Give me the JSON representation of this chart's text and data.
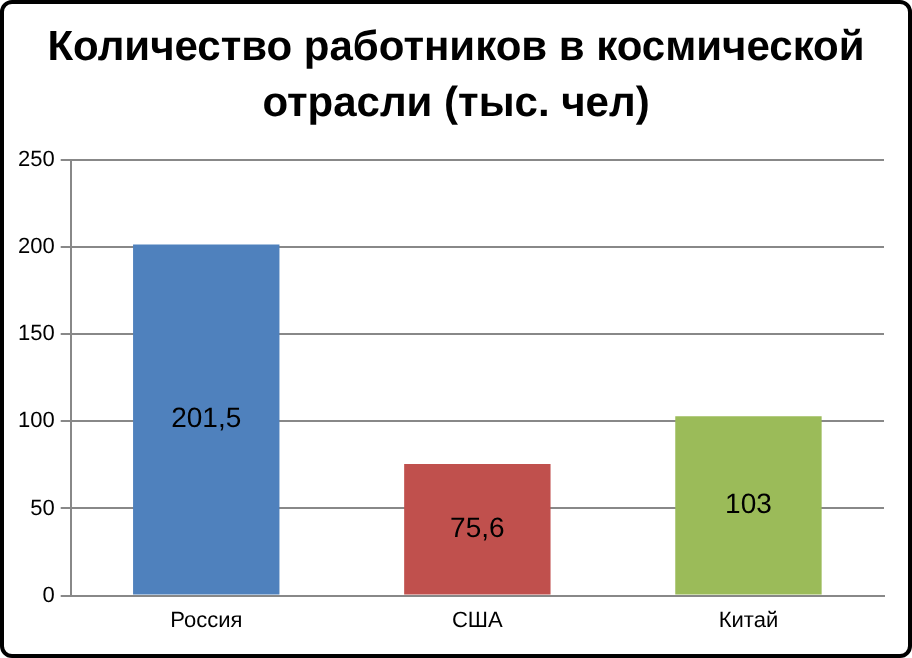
{
  "chart_data": {
    "type": "bar",
    "title": "Количество работников в космической отрасли (тыс. чел)",
    "categories": [
      "Россия",
      "США",
      "Китай"
    ],
    "values": [
      201.5,
      75.6,
      103
    ],
    "colors": [
      "#4f81bd",
      "#c0504d",
      "#9bbb59"
    ],
    "value_labels": [
      "201,5",
      "75,6",
      "103"
    ],
    "ylim": [
      0,
      250
    ],
    "yticks": [
      0,
      50,
      100,
      150,
      200,
      250
    ],
    "grid": "y"
  }
}
